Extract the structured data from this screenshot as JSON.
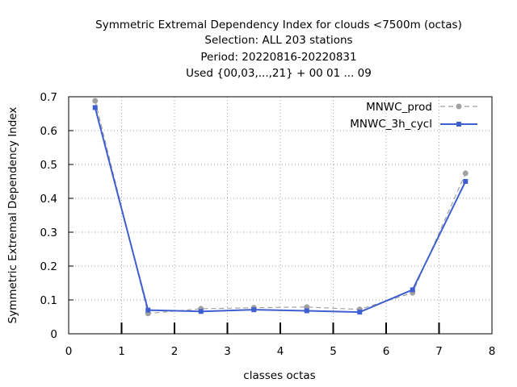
{
  "chart_data": {
    "type": "line",
    "title_lines": [
      "Symmetric Extremal Dependency Index  for clouds <7500m (octas)",
      "Selection: ALL    203 stations",
      "Period: 20220816-20220831",
      "Used {00,03,...,21} + 00 01 ... 09"
    ],
    "xlabel": "classes octas",
    "ylabel": "Symmetric Extremal Dependency Index",
    "xlim": [
      0,
      8
    ],
    "ylim": [
      0,
      0.7
    ],
    "x_ticks": [
      "0",
      "1",
      "2",
      "3",
      "4",
      "5",
      "6",
      "7",
      "8"
    ],
    "y_ticks": [
      "0",
      "0.1",
      "0.2",
      "0.3",
      "0.4",
      "0.5",
      "0.6",
      "0.7"
    ],
    "grid": true,
    "legend_position": "top-right",
    "x": [
      0.5,
      1.5,
      2.5,
      3.5,
      4.5,
      5.5,
      6.5,
      7.5
    ],
    "series": [
      {
        "name": "MNWC_prod",
        "color": "#a0a0a0",
        "line_style": "dashed",
        "marker": "circle",
        "values": [
          0.688,
          0.06,
          0.074,
          0.077,
          0.079,
          0.072,
          0.121,
          0.474
        ]
      },
      {
        "name": "MNWC_3h_cycl",
        "color": "#3f5fd0",
        "line_style": "solid",
        "marker": "square",
        "values": [
          0.668,
          0.07,
          0.066,
          0.071,
          0.068,
          0.064,
          0.13,
          0.45
        ]
      }
    ]
  }
}
